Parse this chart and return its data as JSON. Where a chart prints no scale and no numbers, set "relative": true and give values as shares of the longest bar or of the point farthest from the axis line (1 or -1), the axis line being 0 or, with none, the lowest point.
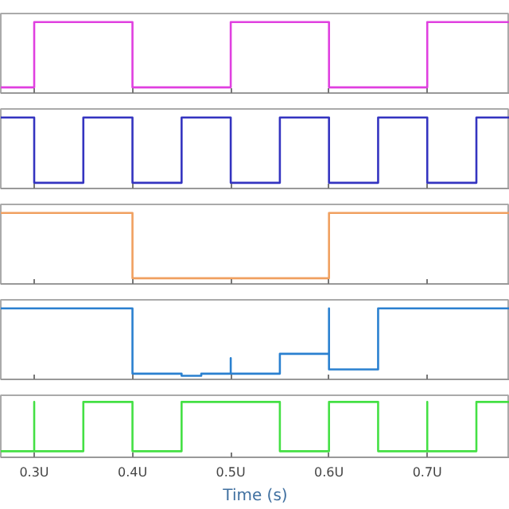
{
  "chart_data": [
    {
      "type": "line",
      "relative": true,
      "xlim": [
        0.266,
        0.784
      ],
      "xticks": [
        0.3,
        0.4,
        0.5,
        0.6,
        0.7
      ],
      "tick_labels": false,
      "grid": false,
      "x": [
        0.266,
        0.3,
        0.3,
        0.4,
        0.4,
        0.5,
        0.5,
        0.6,
        0.6,
        0.7,
        0.7,
        0.784
      ],
      "series": [
        {
          "color": "#e040e0",
          "values": [
            0.08,
            0.08,
            1,
            1,
            0.08,
            0.08,
            1,
            1,
            0.08,
            0.08,
            1,
            1
          ]
        }
      ]
    },
    {
      "type": "line",
      "relative": true,
      "xlim": [
        0.266,
        0.784
      ],
      "xticks": [
        0.3,
        0.4,
        0.5,
        0.6,
        0.7
      ],
      "tick_labels": false,
      "grid": false,
      "x": [
        0.266,
        0.3,
        0.3,
        0.35,
        0.35,
        0.4,
        0.4,
        0.45,
        0.45,
        0.5,
        0.5,
        0.55,
        0.55,
        0.6,
        0.6,
        0.65,
        0.65,
        0.7,
        0.7,
        0.75,
        0.75,
        0.784
      ],
      "series": [
        {
          "color": "#3434c0",
          "values": [
            1,
            1,
            0.08,
            0.08,
            1,
            1,
            0.08,
            0.08,
            1,
            1,
            0.08,
            0.08,
            1,
            1,
            0.08,
            0.08,
            1,
            1,
            0.08,
            0.08,
            1,
            1
          ]
        }
      ]
    },
    {
      "type": "line",
      "relative": true,
      "xlim": [
        0.266,
        0.784
      ],
      "xticks": [
        0.3,
        0.4,
        0.5,
        0.6,
        0.7
      ],
      "tick_labels": false,
      "grid": false,
      "x": [
        0.266,
        0.4,
        0.4,
        0.6,
        0.6,
        0.784
      ],
      "series": [
        {
          "color": "#f0a060",
          "values": [
            1,
            1,
            0.08,
            0.08,
            1,
            1
          ]
        }
      ]
    },
    {
      "type": "line",
      "relative": true,
      "xlim": [
        0.266,
        0.784
      ],
      "xticks": [
        0.3,
        0.4,
        0.5,
        0.6,
        0.7
      ],
      "tick_labels": false,
      "grid": false,
      "x": [
        0.266,
        0.4,
        0.4,
        0.45,
        0.45,
        0.47,
        0.47,
        0.5,
        0.5,
        0.5,
        0.55,
        0.55,
        0.6,
        0.6,
        0.6,
        0.65,
        0.65,
        0.784
      ],
      "series": [
        {
          "color": "#2a80d0",
          "values": [
            1,
            1,
            0.08,
            0.08,
            0.05,
            0.05,
            0.08,
            0.08,
            0.3,
            0.08,
            0.08,
            0.36,
            0.36,
            1,
            0.14,
            0.14,
            1,
            1
          ]
        }
      ]
    },
    {
      "type": "line",
      "relative": true,
      "xlim": [
        0.266,
        0.784
      ],
      "xticks": [
        {
          "value": 0.3,
          "label": "0.3U"
        },
        {
          "value": 0.4,
          "label": "0.4U"
        },
        {
          "value": 0.5,
          "label": "0.5U"
        },
        {
          "value": 0.6,
          "label": "0.6U"
        },
        {
          "value": 0.7,
          "label": "0.7U"
        }
      ],
      "tick_labels": "x",
      "grid": false,
      "xlabel": "Time (s)",
      "x": [
        0.266,
        0.3,
        0.3,
        0.3,
        0.35,
        0.35,
        0.4,
        0.4,
        0.45,
        0.45,
        0.55,
        0.55,
        0.6,
        0.6,
        0.65,
        0.65,
        0.7,
        0.7,
        0.7,
        0.75,
        0.75,
        0.784
      ],
      "series": [
        {
          "color": "#44e044",
          "values": [
            0.11,
            0.11,
            1,
            0.11,
            0.11,
            1,
            1,
            0.11,
            0.11,
            1,
            1,
            0.11,
            0.11,
            1,
            1,
            0.11,
            0.11,
            1,
            0.11,
            0.11,
            1,
            1
          ]
        }
      ]
    }
  ]
}
